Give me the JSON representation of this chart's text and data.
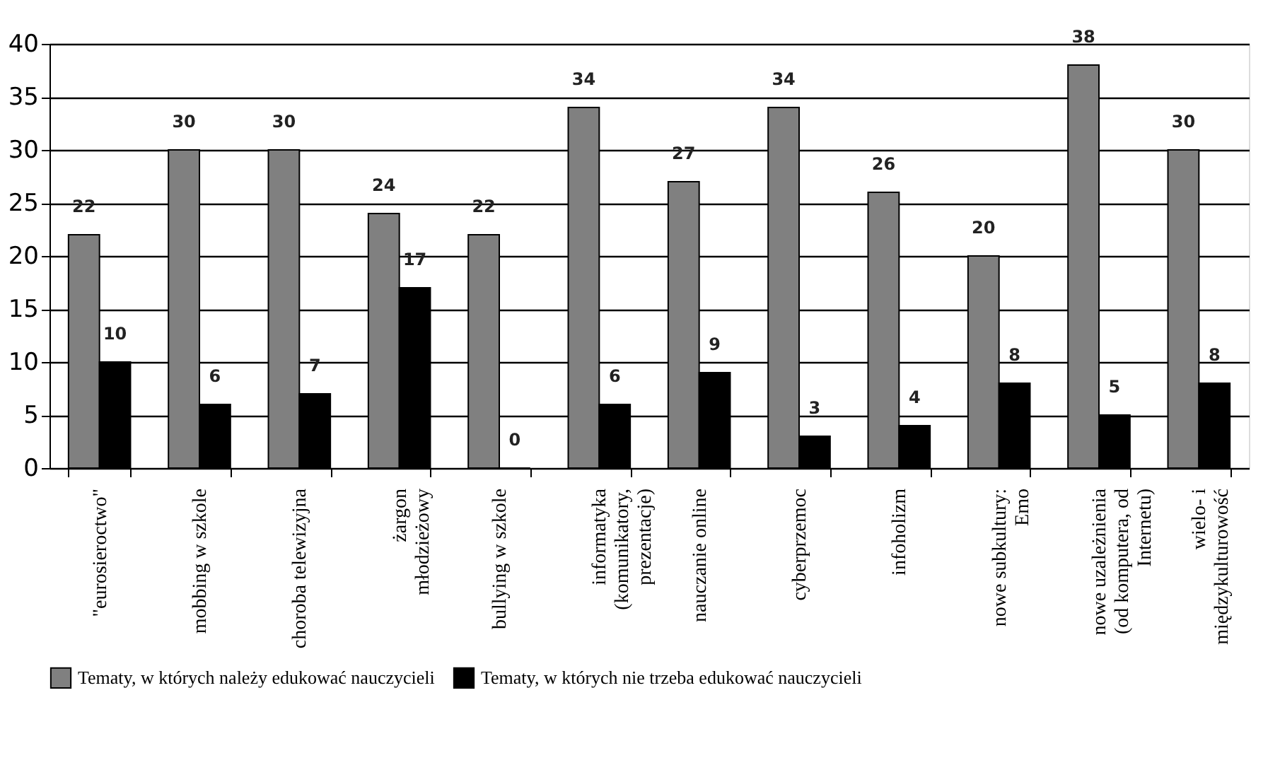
{
  "chart_data": {
    "type": "bar",
    "categories": [
      "\"eurosieroctwo\"",
      "mobbing w szkole",
      "choroba telewizyjna",
      "żargon\nmłodzieżowy",
      "bullying w szkole",
      "informatyka\n(komunikatory,\nprezentacje)",
      "nauczanie online",
      "cyberprzemoc",
      "infoholizm",
      "nowe subkultury:\nEmo",
      "nowe uzależnienia\n(od komputera, od\nInternetu)",
      "wielo- i\nmiędzykulturowość"
    ],
    "series": [
      {
        "name": "Tematy, w których należy edukować nauczycieli",
        "color": "#808080",
        "values": [
          22,
          30,
          30,
          24,
          22,
          34,
          27,
          34,
          26,
          20,
          38,
          30
        ]
      },
      {
        "name": "Tematy, w których nie trzeba edukować nauczycieli",
        "color": "#000000",
        "values": [
          10,
          6,
          7,
          17,
          0,
          6,
          9,
          3,
          4,
          8,
          5,
          8
        ]
      }
    ],
    "ylim": [
      0,
      40
    ],
    "yticks": [
      0,
      5,
      10,
      15,
      20,
      25,
      30,
      35,
      40
    ],
    "grid": "y",
    "legend": "bottom",
    "data_labels": true
  }
}
